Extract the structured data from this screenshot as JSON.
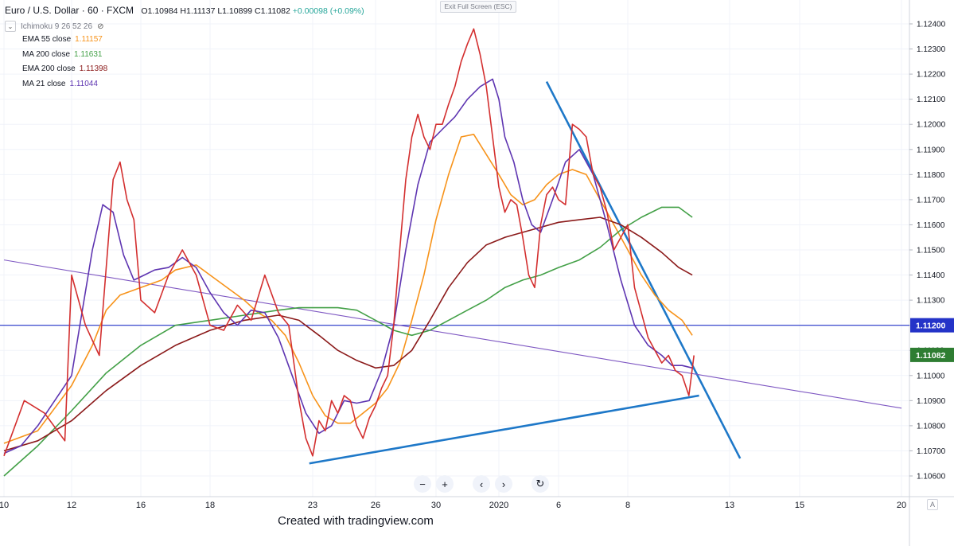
{
  "header": {
    "symbol": "Euro / U.S. Dollar · 60 · FXCM",
    "ohlc": "O1.10984  H1.11137  L1.10899  C1.11082",
    "change": "+0.00098 (+0.09%)",
    "ichimoku_label": "Ichimoku 9 26 52 26"
  },
  "studies": [
    {
      "name": "EMA 55 close",
      "value": "1.11157",
      "color": "#f7931a"
    },
    {
      "name": "MA 200 close",
      "value": "1.11631",
      "color": "#43a047"
    },
    {
      "name": "EMA 200 close",
      "value": "1.11398",
      "color": "#8b1a1a"
    },
    {
      "name": "MA 21 close",
      "value": "1.11044",
      "color": "#5e35b1"
    }
  ],
  "exit_fullscreen": "Exit Full Screen (ESC)",
  "nav": {
    "zoom_out": "−",
    "zoom_in": "+",
    "left": "‹",
    "right": "›",
    "reset": "↻"
  },
  "credit": "Created with tradingview.com",
  "auto_label": "A",
  "colors": {
    "up": "#2e7d32",
    "down": "#d32f2f",
    "trendline": "#1e78c8",
    "h_line": "#2433c8",
    "diagonal": "#7e57c2"
  },
  "chart_data": {
    "type": "line",
    "title": "Euro / U.S. Dollar · 60 · FXCM",
    "ylim": [
      1.1055,
      1.1245
    ],
    "y_ticks": [
      "1.12400",
      "1.12300",
      "1.12200",
      "1.12100",
      "1.12000",
      "1.11900",
      "1.11800",
      "1.11700",
      "1.11600",
      "1.11500",
      "1.11400",
      "1.11300",
      "1.11200",
      "1.11100",
      "1.11000",
      "1.10900",
      "1.10800",
      "1.10700",
      "1.10600"
    ],
    "x_ticks": [
      {
        "label": "10",
        "t": 0
      },
      {
        "label": "12",
        "t": 2
      },
      {
        "label": "16",
        "t": 4
      },
      {
        "label": "18",
        "t": 6
      },
      {
        "label": "23",
        "t": 9
      },
      {
        "label": "26",
        "t": 11
      },
      {
        "label": "30",
        "t": 13
      },
      {
        "label": "2020",
        "t": 15
      },
      {
        "label": "6",
        "t": 17
      },
      {
        "label": "8",
        "t": 19
      },
      {
        "label": "13",
        "t": 22
      },
      {
        "label": "15",
        "t": 24
      },
      {
        "label": "20",
        "t": 27
      }
    ],
    "xlim": [
      0,
      27
    ],
    "price_line": {
      "value": 1.112,
      "label": "1.11200"
    },
    "last_price": {
      "value": 1.11082,
      "label": "1.11082"
    },
    "series": [
      {
        "name": "EMA 55 close",
        "color": "#f7931a",
        "x": [
          0,
          1,
          2,
          2.6,
          3,
          3.4,
          4,
          4.6,
          5,
          5.6,
          6,
          6.6,
          7,
          7.4,
          7.8,
          8.2,
          8.6,
          9,
          9.4,
          9.8,
          10.2,
          10.6,
          11,
          11.4,
          11.8,
          12.2,
          12.6,
          13,
          13.4,
          13.8,
          14.2,
          14.6,
          15,
          15.4,
          15.8,
          16.2,
          16.6,
          17,
          17.4,
          17.8,
          18.2,
          18.6,
          19,
          19.4,
          19.8,
          20.2,
          20.6,
          20.9
        ],
        "y": [
          1.1073,
          1.1078,
          1.1096,
          1.1112,
          1.1126,
          1.1132,
          1.1135,
          1.1138,
          1.1142,
          1.1144,
          1.114,
          1.1134,
          1.113,
          1.1125,
          1.1122,
          1.1116,
          1.1105,
          1.1092,
          1.1084,
          1.1081,
          1.1081,
          1.1085,
          1.1089,
          1.1095,
          1.1105,
          1.1122,
          1.114,
          1.1162,
          1.118,
          1.1195,
          1.1196,
          1.1188,
          1.118,
          1.1172,
          1.1168,
          1.117,
          1.1176,
          1.118,
          1.1182,
          1.118,
          1.117,
          1.116,
          1.115,
          1.114,
          1.1132,
          1.1126,
          1.1122,
          1.1116
        ]
      },
      {
        "name": "MA 200 close",
        "color": "#43a047",
        "x": [
          0,
          1,
          2,
          3,
          4,
          5,
          6,
          7,
          8,
          8.6,
          9.2,
          9.8,
          10.4,
          11,
          11.6,
          12.2,
          12.8,
          13.4,
          14,
          14.6,
          15.2,
          15.8,
          16.4,
          17,
          17.6,
          18.2,
          18.8,
          19.4,
          20,
          20.5,
          20.9
        ],
        "y": [
          1.106,
          1.1072,
          1.1086,
          1.1101,
          1.1112,
          1.112,
          1.1122,
          1.1124,
          1.1126,
          1.1127,
          1.1127,
          1.1127,
          1.1126,
          1.1122,
          1.1118,
          1.1116,
          1.1118,
          1.1122,
          1.1126,
          1.113,
          1.1135,
          1.1138,
          1.114,
          1.1143,
          1.1146,
          1.1151,
          1.1158,
          1.1163,
          1.1167,
          1.1167,
          1.1163
        ]
      },
      {
        "name": "EMA 200 close",
        "color": "#8b1a1a",
        "x": [
          0,
          1,
          2,
          3,
          4,
          5,
          6,
          7,
          8,
          8.6,
          9.2,
          9.8,
          10.4,
          11,
          11.6,
          12.2,
          12.8,
          13.4,
          14,
          14.6,
          15.2,
          15.8,
          16.4,
          17,
          17.6,
          18.2,
          18.8,
          19.4,
          20,
          20.5,
          20.9
        ],
        "y": [
          1.107,
          1.1074,
          1.1082,
          1.1094,
          1.1104,
          1.1112,
          1.1118,
          1.1122,
          1.1124,
          1.1122,
          1.1116,
          1.111,
          1.1106,
          1.1103,
          1.1104,
          1.111,
          1.1122,
          1.1135,
          1.1145,
          1.1152,
          1.1155,
          1.1157,
          1.1159,
          1.1161,
          1.1162,
          1.1163,
          1.116,
          1.1155,
          1.1149,
          1.1143,
          1.114
        ]
      },
      {
        "name": "MA 21 close",
        "color": "#5e35b1",
        "x": [
          0,
          0.5,
          1,
          1.5,
          2,
          2.3,
          2.6,
          2.9,
          3.2,
          3.5,
          3.8,
          4.1,
          4.4,
          4.8,
          5.2,
          5.6,
          6,
          6.4,
          6.8,
          7.2,
          7.6,
          8,
          8.4,
          8.8,
          9.2,
          9.6,
          10,
          10.4,
          10.8,
          11.2,
          11.6,
          12,
          12.4,
          12.8,
          13.2,
          13.6,
          14,
          14.4,
          14.8,
          15,
          15.2,
          15.5,
          15.8,
          16.1,
          16.4,
          16.8,
          17.2,
          17.6,
          18,
          18.4,
          18.8,
          19.2,
          19.6,
          20,
          20.3,
          20.6,
          20.9
        ],
        "y": [
          1.1069,
          1.1072,
          1.108,
          1.109,
          1.11,
          1.1125,
          1.115,
          1.1168,
          1.1165,
          1.1148,
          1.1138,
          1.114,
          1.1142,
          1.1143,
          1.1147,
          1.1143,
          1.1133,
          1.1125,
          1.112,
          1.1126,
          1.1125,
          1.1115,
          1.11,
          1.1085,
          1.1077,
          1.108,
          1.109,
          1.1089,
          1.109,
          1.1102,
          1.112,
          1.115,
          1.1176,
          1.1193,
          1.1198,
          1.1203,
          1.121,
          1.1215,
          1.1218,
          1.121,
          1.1195,
          1.1185,
          1.117,
          1.116,
          1.1157,
          1.117,
          1.1185,
          1.119,
          1.118,
          1.116,
          1.1138,
          1.112,
          1.1112,
          1.1108,
          1.1104,
          1.1104,
          1.1103
        ]
      },
      {
        "name": "",
        "color": "#d32f2f",
        "x": [
          0,
          0.6,
          1.2,
          1.8,
          2,
          2.4,
          2.8,
          3.2,
          3.4,
          3.6,
          3.8,
          4.0,
          4.4,
          4.8,
          5.2,
          5.6,
          6,
          6.4,
          6.8,
          7.2,
          7.6,
          8,
          8.3,
          8.6,
          8.8,
          9.0,
          9.2,
          9.4,
          9.6,
          9.8,
          10,
          10.2,
          10.4,
          10.6,
          10.8,
          11,
          11.2,
          11.4,
          11.6,
          11.8,
          12,
          12.2,
          12.4,
          12.6,
          12.8,
          13,
          13.2,
          13.4,
          13.6,
          13.8,
          14,
          14.2,
          14.4,
          14.6,
          14.8,
          15,
          15.2,
          15.4,
          15.6,
          15.8,
          16,
          16.2,
          16.4,
          16.6,
          16.8,
          17,
          17.2,
          17.4,
          17.6,
          17.8,
          18,
          18.2,
          18.4,
          18.6,
          18.8,
          19,
          19.2,
          19.4,
          19.6,
          19.8,
          20,
          20.2,
          20.4,
          20.6,
          20.8,
          20.95
        ],
        "y": [
          1.1068,
          1.109,
          1.1085,
          1.1074,
          1.114,
          1.112,
          1.1108,
          1.1178,
          1.1185,
          1.117,
          1.1162,
          1.113,
          1.1125,
          1.114,
          1.115,
          1.114,
          1.112,
          1.1118,
          1.1128,
          1.1122,
          1.114,
          1.1125,
          1.112,
          1.109,
          1.1075,
          1.1068,
          1.1082,
          1.1078,
          1.109,
          1.1085,
          1.1092,
          1.109,
          1.108,
          1.1075,
          1.1083,
          1.1088,
          1.1095,
          1.11,
          1.112,
          1.115,
          1.1178,
          1.1195,
          1.1204,
          1.1195,
          1.119,
          1.12,
          1.12,
          1.1208,
          1.1215,
          1.1225,
          1.1232,
          1.1238,
          1.1228,
          1.1215,
          1.1195,
          1.1175,
          1.1165,
          1.117,
          1.1168,
          1.1155,
          1.114,
          1.1135,
          1.116,
          1.1172,
          1.1175,
          1.117,
          1.1168,
          1.12,
          1.1198,
          1.1195,
          1.118,
          1.1175,
          1.1165,
          1.115,
          1.1155,
          1.116,
          1.1135,
          1.1125,
          1.1115,
          1.111,
          1.1105,
          1.1108,
          1.1102,
          1.11,
          1.1092,
          1.1108
        ]
      }
    ],
    "annotations": [
      {
        "name": "support-trendline",
        "color": "#1e78c8",
        "x": [
          8.9,
          21.1
        ],
        "y": [
          1.1065,
          1.1092
        ]
      },
      {
        "name": "resistance-trendline",
        "color": "#1e78c8",
        "x": [
          16.6,
          22.3
        ],
        "y": [
          1.1217,
          1.1067
        ]
      },
      {
        "name": "diagonal-line",
        "color": "#7e57c2",
        "x": [
          0,
          27
        ],
        "y": [
          1.1146,
          1.1087
        ]
      }
    ]
  }
}
